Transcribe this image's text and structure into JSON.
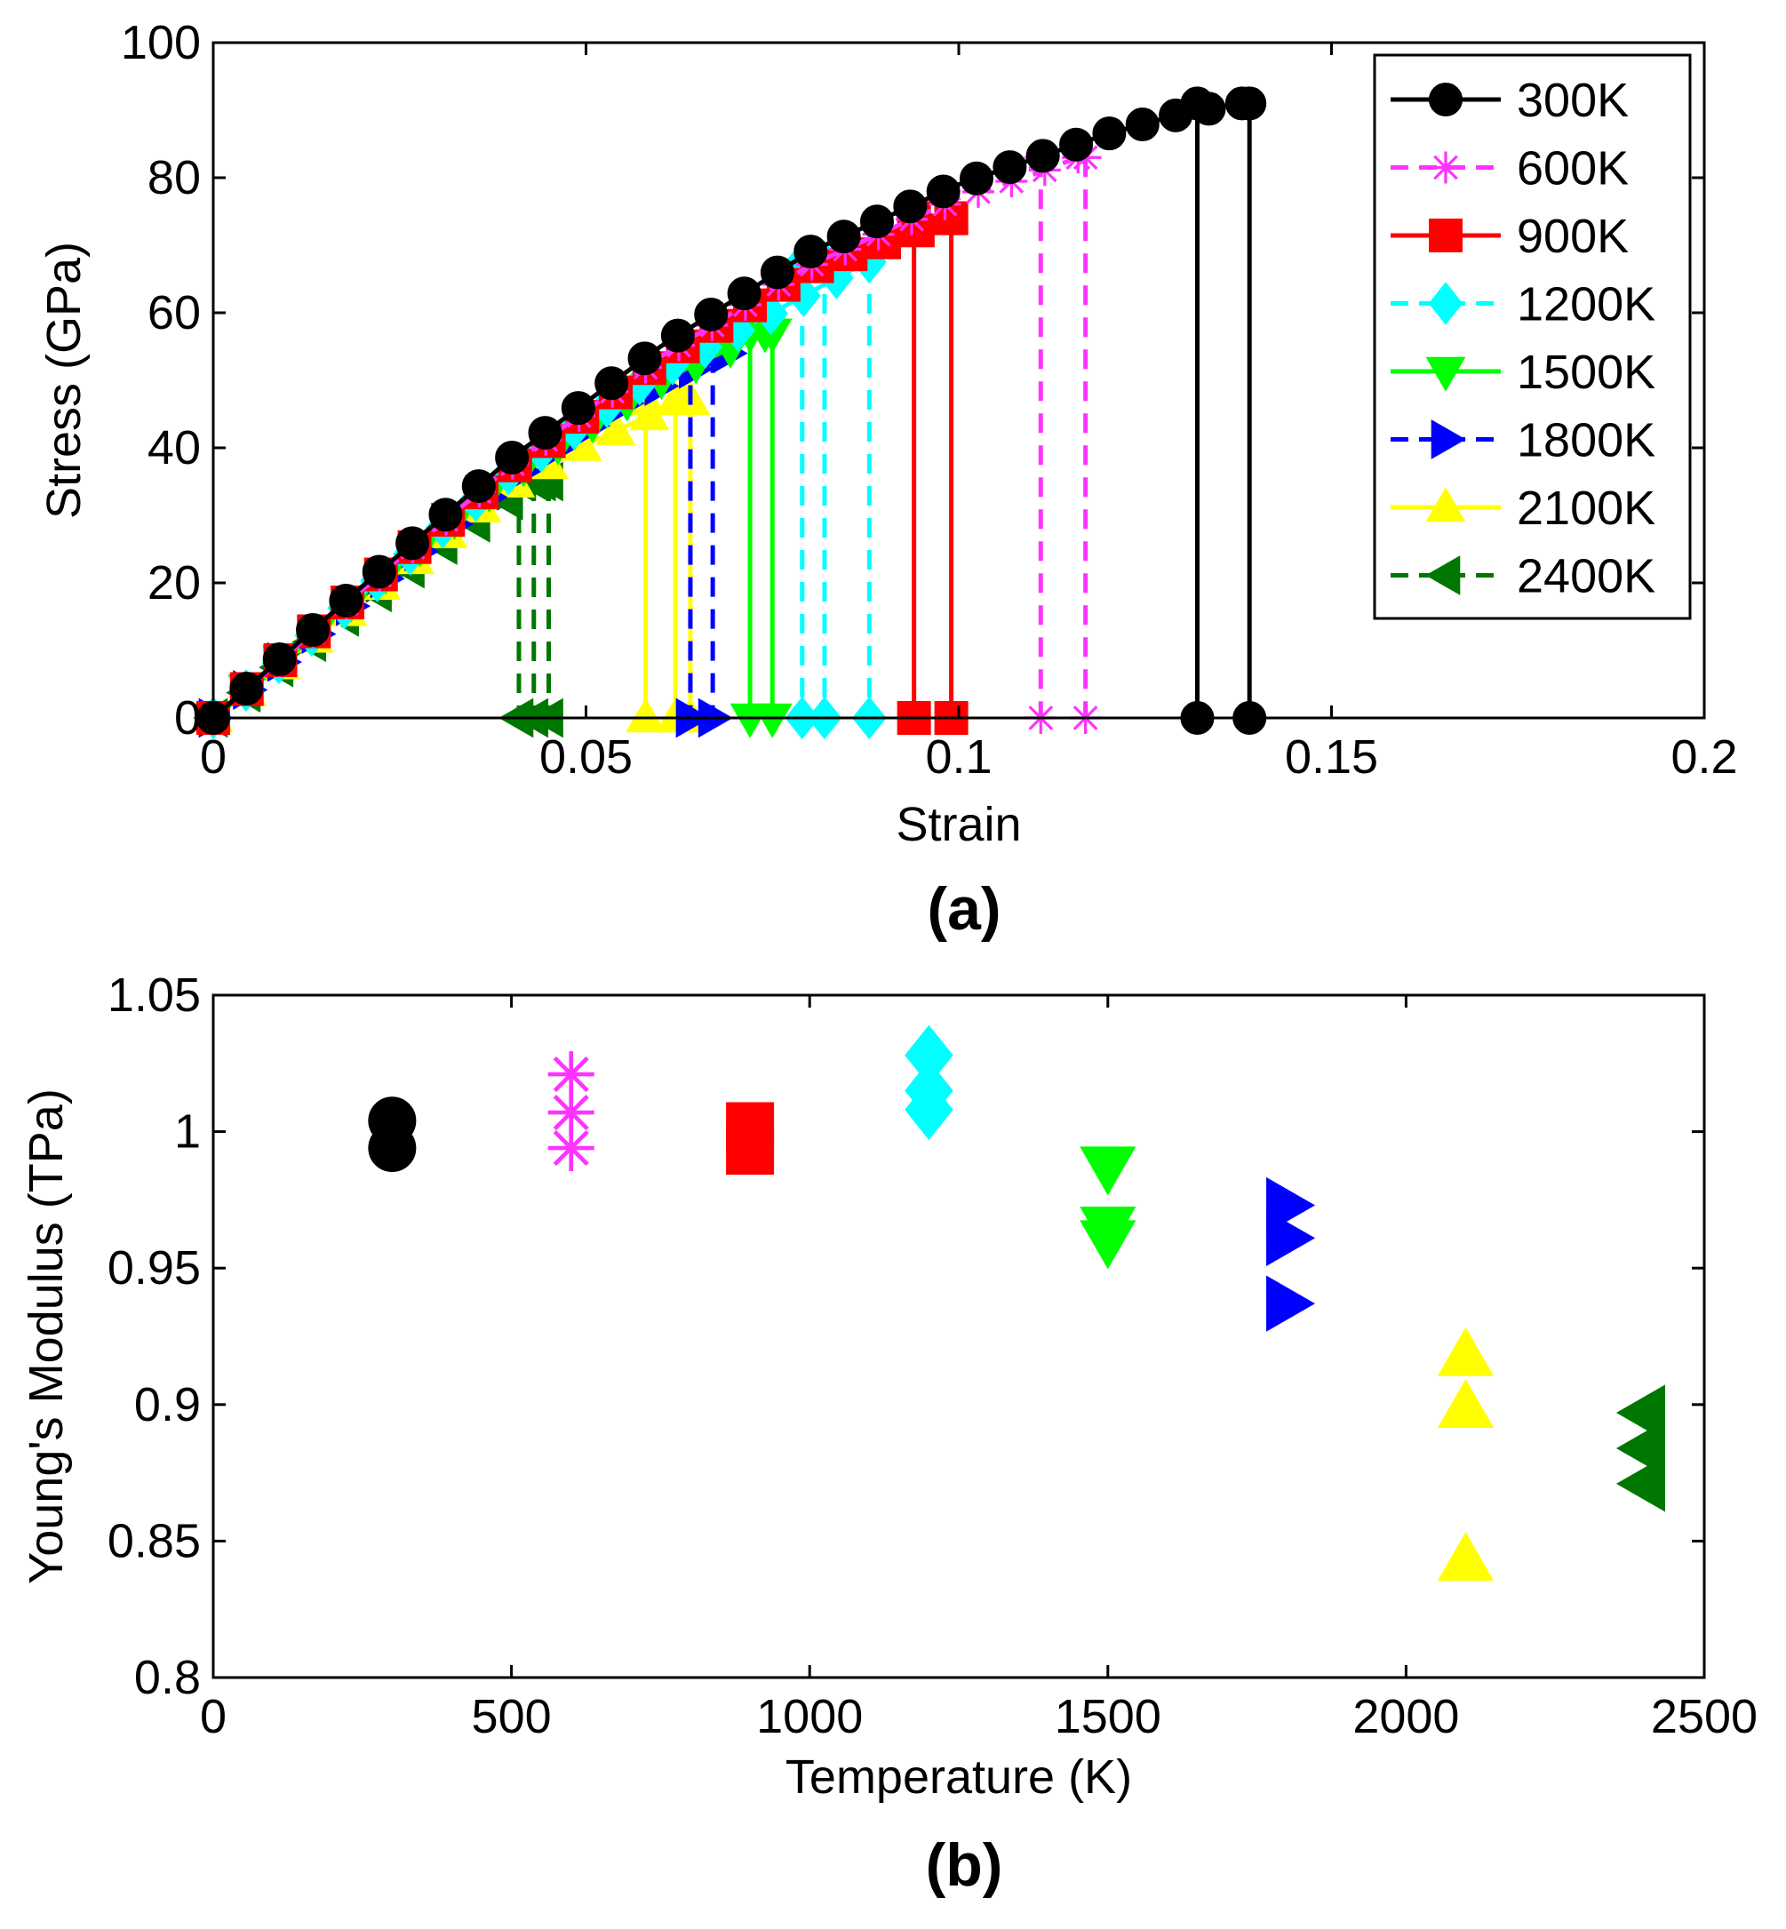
{
  "chart_data": [
    {
      "type": "line",
      "panel_label": "(a)",
      "title": "",
      "xlabel": "Strain",
      "ylabel": "Stress (GPa)",
      "xlim": [
        0,
        0.2
      ],
      "ylim": [
        0,
        100
      ],
      "xticks": [
        0,
        0.05,
        0.1,
        0.15,
        0.2
      ],
      "xtick_labels": [
        "0",
        "0.05",
        "0.1",
        "0.15",
        "0.2"
      ],
      "yticks": [
        0,
        20,
        40,
        60,
        80,
        100
      ],
      "ytick_labels": [
        "0",
        "20",
        "40",
        "60",
        "80",
        "100"
      ],
      "grid": false,
      "legend_position": "top-right",
      "series": [
        {
          "name": "300K",
          "color": "#000000",
          "marker": "circle",
          "line": "solid",
          "x": [
            0,
            0.02,
            0.04,
            0.06,
            0.08,
            0.1,
            0.12,
            0.13,
            0.135,
            0.138
          ],
          "y": [
            0,
            19.5,
            38.5,
            55,
            69,
            79,
            86.5,
            89.5,
            90.5,
            91
          ],
          "fracture_strains": [
            0.132,
            0.139
          ]
        },
        {
          "name": "600K",
          "color": "#ff33ff",
          "marker": "star",
          "line": "dashed",
          "x": [
            0,
            0.02,
            0.04,
            0.06,
            0.08,
            0.1,
            0.11,
            0.116
          ],
          "y": [
            0,
            19,
            37.5,
            53.5,
            67,
            77,
            80.5,
            83
          ],
          "fracture_strains": [
            0.111,
            0.117
          ]
        },
        {
          "name": "900K",
          "color": "#ff0000",
          "marker": "square",
          "line": "solid",
          "x": [
            0,
            0.02,
            0.04,
            0.06,
            0.08,
            0.094,
            0.099
          ],
          "y": [
            0,
            19,
            37,
            53,
            66.5,
            72,
            74
          ],
          "fracture_strains": [
            0.094,
            0.099
          ]
        },
        {
          "name": "1200K",
          "color": "#00ffff",
          "marker": "diamond",
          "line": "dashed",
          "x": [
            0,
            0.02,
            0.04,
            0.06,
            0.075,
            0.085,
            0.088
          ],
          "y": [
            0,
            18.5,
            36.5,
            51.5,
            60,
            66,
            67.5
          ],
          "fracture_strains": [
            0.079,
            0.082,
            0.088
          ]
        },
        {
          "name": "1500K",
          "color": "#00ff00",
          "marker": "triangle-down",
          "line": "solid",
          "x": [
            0,
            0.02,
            0.04,
            0.06,
            0.07,
            0.074
          ],
          "y": [
            0,
            18.5,
            36,
            50,
            55,
            57
          ],
          "fracture_strains": [
            0.072,
            0.075
          ]
        },
        {
          "name": "1800K",
          "color": "#0000ff",
          "marker": "triangle-right",
          "line": "dashed",
          "x": [
            0,
            0.02,
            0.04,
            0.055,
            0.065,
            0.069
          ],
          "y": [
            0,
            18,
            35.5,
            46.5,
            52,
            54
          ],
          "fracture_strains": [
            0.064,
            0.067
          ]
        },
        {
          "name": "2100K",
          "color": "#ffff00",
          "marker": "triangle-up",
          "line": "solid",
          "x": [
            0,
            0.02,
            0.04,
            0.05,
            0.058,
            0.063
          ],
          "y": [
            0,
            17.5,
            34.5,
            40.5,
            44.5,
            47
          ],
          "fracture_strains": [
            0.058,
            0.062,
            0.064
          ]
        },
        {
          "name": "2400K",
          "color": "#007700",
          "marker": "triangle-left",
          "line": "dashed",
          "x": [
            0,
            0.01,
            0.02,
            0.03,
            0.04,
            0.044
          ],
          "y": [
            0,
            8.5,
            17,
            25,
            32.5,
            35
          ],
          "fracture_strains": [
            0.041,
            0.043,
            0.045
          ]
        }
      ]
    },
    {
      "type": "scatter",
      "panel_label": "(b)",
      "title": "",
      "xlabel": "Temperature (K)",
      "ylabel": "Young's Modulus (TPa)",
      "xlim": [
        0,
        2500
      ],
      "ylim": [
        0.8,
        1.05
      ],
      "xticks": [
        0,
        500,
        1000,
        1500,
        2000,
        2500
      ],
      "xtick_labels": [
        "0",
        "500",
        "1000",
        "1500",
        "2000",
        "2500"
      ],
      "yticks": [
        0.8,
        0.85,
        0.9,
        0.95,
        1.0,
        1.05
      ],
      "ytick_labels": [
        "0.8",
        "0.85",
        "0.9",
        "0.95",
        "1",
        "1.05"
      ],
      "grid": false,
      "series": [
        {
          "name": "300K",
          "color": "#000000",
          "marker": "circle",
          "x": [
            300,
            300
          ],
          "y": [
            1.004,
            0.994
          ]
        },
        {
          "name": "600K",
          "color": "#ff33ff",
          "marker": "star",
          "x": [
            600,
            600,
            600
          ],
          "y": [
            1.021,
            1.007,
            0.994
          ]
        },
        {
          "name": "900K",
          "color": "#ff0000",
          "marker": "square",
          "x": [
            900,
            900
          ],
          "y": [
            1.002,
            0.993
          ]
        },
        {
          "name": "1200K",
          "color": "#00ffff",
          "marker": "diamond",
          "x": [
            1200,
            1200,
            1200
          ],
          "y": [
            1.028,
            1.015,
            1.008
          ]
        },
        {
          "name": "1500K",
          "color": "#00ff00",
          "marker": "triangle-down",
          "x": [
            1500,
            1500,
            1500
          ],
          "y": [
            0.987,
            0.965,
            0.96
          ]
        },
        {
          "name": "1800K",
          "color": "#0000ff",
          "marker": "triangle-right",
          "x": [
            1800,
            1800,
            1800
          ],
          "y": [
            0.973,
            0.961,
            0.937
          ]
        },
        {
          "name": "2100K",
          "color": "#ffff00",
          "marker": "triangle-up",
          "x": [
            2100,
            2100,
            2100
          ],
          "y": [
            0.918,
            0.899,
            0.843
          ]
        },
        {
          "name": "2400K",
          "color": "#007700",
          "marker": "triangle-left",
          "x": [
            2400,
            2400,
            2400
          ],
          "y": [
            0.897,
            0.884,
            0.871
          ]
        }
      ]
    }
  ]
}
